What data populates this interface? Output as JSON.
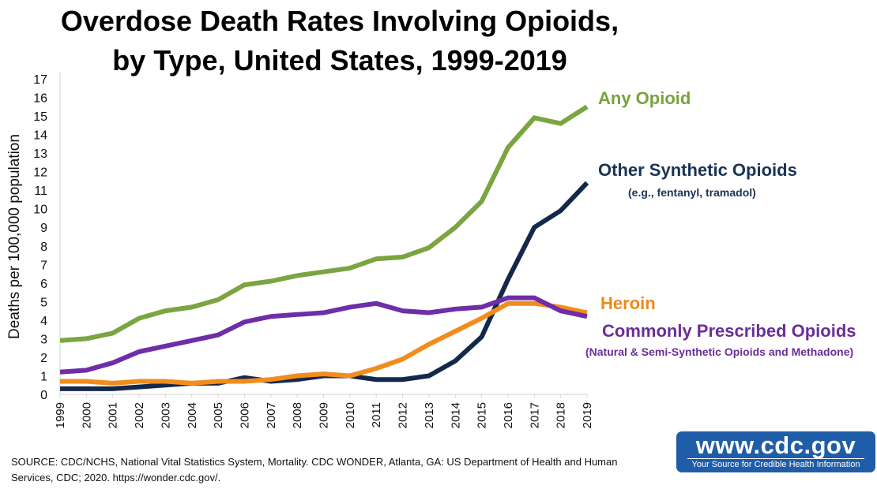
{
  "chart_data": {
    "type": "line",
    "title": "Overdose Death Rates Involving Opioids, by Type, United States, 1999-2019",
    "title_lines": [
      "Overdose Death Rates Involving Opioids,",
      "by Type, United States, 1999-2019"
    ],
    "xlabel": "",
    "ylabel": "Deaths per 100,000 population",
    "ylim": [
      0,
      17
    ],
    "yticks": [
      0,
      1,
      2,
      3,
      4,
      5,
      6,
      7,
      8,
      9,
      10,
      11,
      12,
      13,
      14,
      15,
      16,
      17
    ],
    "grid": false,
    "x": [
      "1999",
      "2000",
      "2001",
      "2002",
      "2003",
      "2004",
      "2005",
      "2006",
      "2007",
      "2008",
      "2009",
      "2010",
      "2011",
      "2012",
      "2013",
      "2014",
      "2015",
      "2016",
      "2017",
      "2018",
      "2019"
    ],
    "series": [
      {
        "name": "Any Opioid",
        "color": "#7aa540",
        "values": [
          2.9,
          3.0,
          3.3,
          4.1,
          4.5,
          4.7,
          5.1,
          5.9,
          6.1,
          6.4,
          6.6,
          6.8,
          7.3,
          7.4,
          7.9,
          9.0,
          10.4,
          13.3,
          14.9,
          14.6,
          15.5
        ]
      },
      {
        "name": "Commonly Prescribed Opioids",
        "subtitle": "(Natural & Semi-Synthetic Opioids and Methadone)",
        "color": "#6f2da8",
        "values": [
          1.2,
          1.3,
          1.7,
          2.3,
          2.6,
          2.9,
          3.2,
          3.9,
          4.2,
          4.3,
          4.4,
          4.7,
          4.9,
          4.5,
          4.4,
          4.6,
          4.7,
          5.2,
          5.2,
          4.5,
          4.2
        ]
      },
      {
        "name": "Heroin",
        "color": "#f28c1c",
        "values": [
          0.7,
          0.7,
          0.6,
          0.7,
          0.7,
          0.6,
          0.7,
          0.7,
          0.8,
          1.0,
          1.1,
          1.0,
          1.4,
          1.9,
          2.7,
          3.4,
          4.1,
          4.9,
          4.9,
          4.7,
          4.4
        ]
      },
      {
        "name": "Other Synthetic Opioids",
        "subtitle": "(e.g., fentanyl, tramadol)",
        "color": "#14294a",
        "values": [
          0.3,
          0.3,
          0.3,
          0.4,
          0.5,
          0.6,
          0.6,
          0.9,
          0.7,
          0.8,
          1.0,
          1.0,
          0.8,
          0.8,
          1.0,
          1.8,
          3.1,
          6.2,
          9.0,
          9.9,
          11.4
        ]
      }
    ],
    "legend_placement": "right (direct labels)"
  },
  "labels": {
    "any": "Any Opioid",
    "synthetic": "Other Synthetic Opioids",
    "synthetic_sub": "(e.g., fentanyl, tramadol)",
    "heroin": "Heroin",
    "prescribed": "Commonly Prescribed Opioids",
    "prescribed_sub": "(Natural & Semi-Synthetic Opioids and Methadone)"
  },
  "source_text": "SOURCE: CDC/NCHS, National Vital Statistics System, Mortality. CDC WONDER, Atlanta, GA: US Department of Health and Human Services, CDC; 2020. https://wonder.cdc.gov/.",
  "logo": {
    "url_text": "www.cdc.gov",
    "tagline": "Your Source for Credible Health Information",
    "color": "#1f5da8"
  }
}
